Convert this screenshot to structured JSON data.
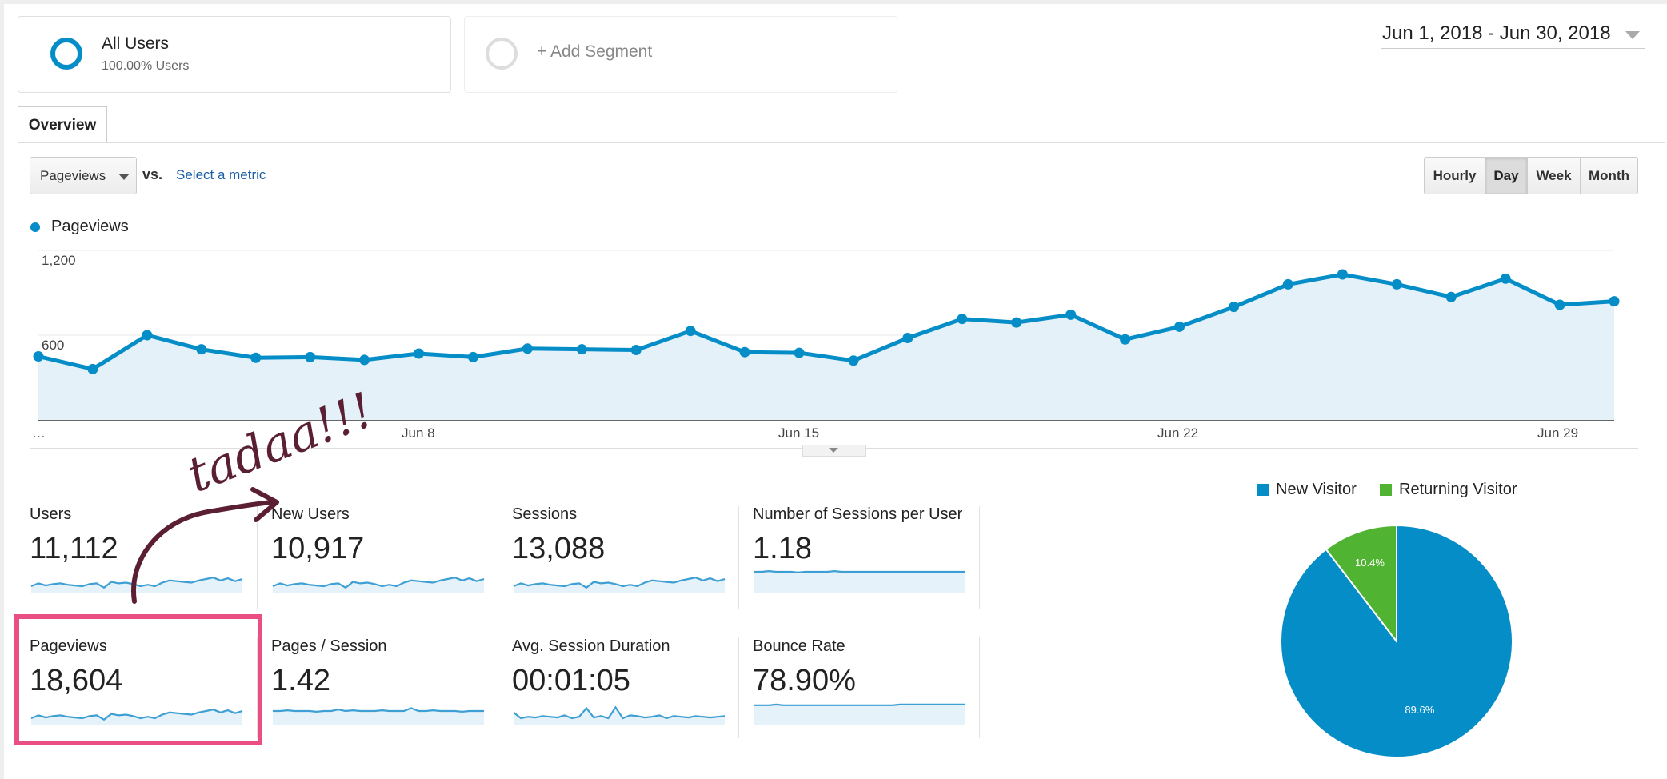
{
  "segments": {
    "all_users": {
      "title": "All Users",
      "subtitle": "100.00% Users"
    },
    "add_segment": {
      "label": "+ Add Segment"
    }
  },
  "date_range": "Jun 1, 2018 - Jun 30, 2018",
  "tabs": {
    "overview": "Overview"
  },
  "controls": {
    "metric_select": "Pageviews",
    "vs": "vs.",
    "select_metric": "Select a metric",
    "granularity": [
      "Hourly",
      "Day",
      "Week",
      "Month"
    ],
    "granularity_selected": "Day"
  },
  "legend": {
    "pageviews": "Pageviews"
  },
  "colors": {
    "accent": "#058dc7",
    "returning": "#50b432",
    "highlight": "#e94e84",
    "annotation": "#5a1f33"
  },
  "chart_data": {
    "type": "area",
    "series": [
      {
        "name": "Pageviews",
        "values": [
          450,
          360,
          600,
          500,
          440,
          445,
          425,
          470,
          445,
          505,
          500,
          495,
          630,
          480,
          475,
          420,
          580,
          715,
          690,
          745,
          570,
          660,
          800,
          960,
          1030,
          960,
          870,
          1000,
          815,
          840
        ]
      }
    ],
    "x": [
      "Jun 1",
      "Jun 2",
      "Jun 3",
      "Jun 4",
      "Jun 5",
      "Jun 6",
      "Jun 7",
      "Jun 8",
      "Jun 9",
      "Jun 10",
      "Jun 11",
      "Jun 12",
      "Jun 13",
      "Jun 14",
      "Jun 15",
      "Jun 16",
      "Jun 17",
      "Jun 18",
      "Jun 19",
      "Jun 20",
      "Jun 21",
      "Jun 22",
      "Jun 23",
      "Jun 24",
      "Jun 25",
      "Jun 26",
      "Jun 27",
      "Jun 28",
      "Jun 29",
      "Jun 30"
    ],
    "x_tick_labels": [
      "…",
      "Jun 8",
      "Jun 15",
      "Jun 22",
      "Jun 29"
    ],
    "y_tick_labels": [
      "1,200",
      "600"
    ],
    "ylim": [
      0,
      1200
    ],
    "grid": true
  },
  "metrics": [
    {
      "label": "Users",
      "value": "11,112"
    },
    {
      "label": "New Users",
      "value": "10,917"
    },
    {
      "label": "Sessions",
      "value": "13,088"
    },
    {
      "label": "Number of Sessions per User",
      "value": "1.18"
    },
    {
      "label": "Pageviews",
      "value": "18,604"
    },
    {
      "label": "Pages / Session",
      "value": "1.42"
    },
    {
      "label": "Avg. Session Duration",
      "value": "00:01:05"
    },
    {
      "label": "Bounce Rate",
      "value": "78.90%"
    }
  ],
  "pie_chart": {
    "type": "pie",
    "legend": [
      "New Visitor",
      "Returning Visitor"
    ],
    "slices": [
      {
        "name": "New Visitor",
        "value": 89.6,
        "label": "89.6%",
        "color": "#058dc7"
      },
      {
        "name": "Returning Visitor",
        "value": 10.4,
        "label": "10.4%",
        "color": "#50b432"
      }
    ]
  },
  "annotation": {
    "text": "tadaa!!!"
  }
}
